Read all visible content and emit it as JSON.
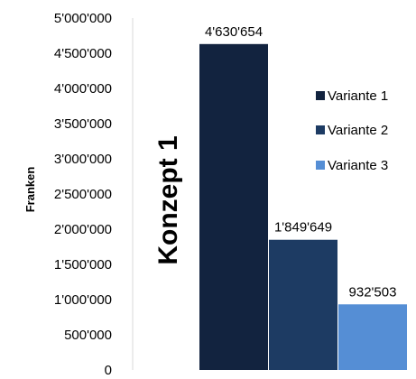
{
  "chart_data": {
    "type": "bar",
    "ylabel": "Franken",
    "annotation": "Konzept 1",
    "ylim": [
      0,
      5000000
    ],
    "yticks": [
      {
        "value": 0,
        "label": "0"
      },
      {
        "value": 500000,
        "label": "500'000"
      },
      {
        "value": 1000000,
        "label": "1'000'000"
      },
      {
        "value": 1500000,
        "label": "1'500'000"
      },
      {
        "value": 2000000,
        "label": "2'000'000"
      },
      {
        "value": 2500000,
        "label": "2'500'000"
      },
      {
        "value": 3000000,
        "label": "3'000'000"
      },
      {
        "value": 3500000,
        "label": "3'500'000"
      },
      {
        "value": 4000000,
        "label": "4'000'000"
      },
      {
        "value": 4500000,
        "label": "4'500'000"
      },
      {
        "value": 5000000,
        "label": "5'000'000"
      }
    ],
    "series": [
      {
        "name": "Variante 1",
        "value": 4630654,
        "label": "4'630'654",
        "color": "#12233f"
      },
      {
        "name": "Variante 2",
        "value": 1849649,
        "label": "1'849'649",
        "color": "#1d3b63"
      },
      {
        "name": "Variante 3",
        "value": 932503,
        "label": "932'503",
        "color": "#558ed5"
      }
    ],
    "grid": false,
    "legend": "right"
  }
}
